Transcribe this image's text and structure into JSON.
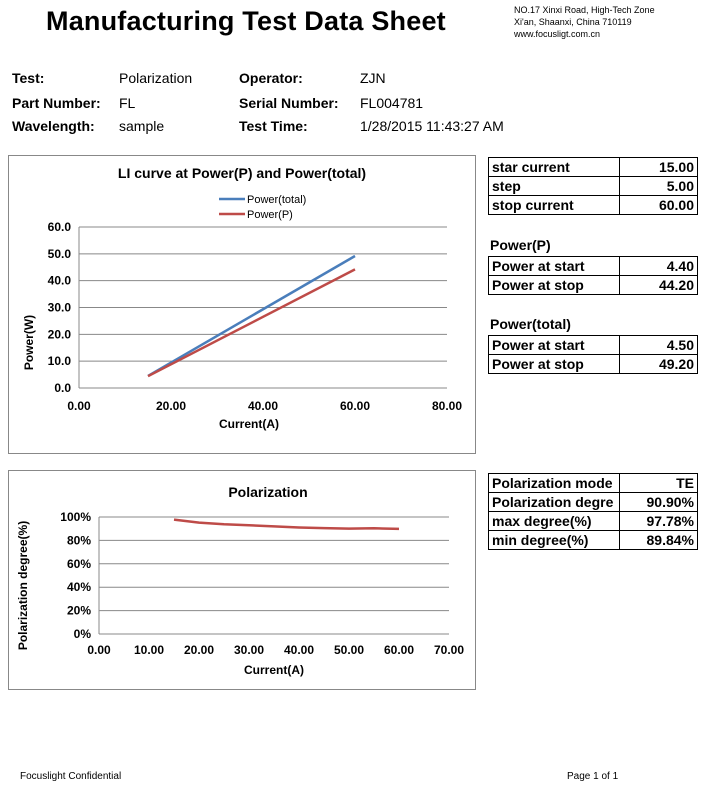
{
  "header": {
    "title": "Manufacturing Test Data Sheet",
    "address_line1": "NO.17 Xinxi Road, High-Tech Zone",
    "address_line2": "Xi'an, Shaanxi, China  710119",
    "website": "www.focusligt.com.cn"
  },
  "info": {
    "test_label": "Test:",
    "test_value": "Polarization",
    "part_label": "Part Number:",
    "part_value": "FL",
    "wave_label": "Wavelength:",
    "wave_value": "sample",
    "operator_label": "Operator:",
    "operator_value": "ZJN",
    "serial_label": "Serial Number:",
    "serial_value": "FL004781",
    "time_label": "Test Time:",
    "time_value": "1/28/2015  11:43:27 AM"
  },
  "chart_data": [
    {
      "type": "line",
      "title": "LI curve at Power(P) and Power(total)",
      "xlabel": "Current(A)",
      "ylabel": "Power(W)",
      "xlim": [
        0,
        80
      ],
      "ylim": [
        0,
        60
      ],
      "x_ticks": [
        "0.00",
        "20.00",
        "40.00",
        "60.00",
        "80.00"
      ],
      "y_ticks": [
        "0.0",
        "10.0",
        "20.0",
        "30.0",
        "40.0",
        "50.0",
        "60.0"
      ],
      "legend_position": "top-center",
      "series": [
        {
          "name": "Power(total)",
          "color": "#4a7ebb",
          "x": [
            15,
            60
          ],
          "y": [
            4.5,
            49.2
          ]
        },
        {
          "name": "Power(P)",
          "color": "#be4b48",
          "x": [
            15,
            60
          ],
          "y": [
            4.4,
            44.2
          ]
        }
      ]
    },
    {
      "type": "line",
      "title": "Polarization",
      "xlabel": "Current(A)",
      "ylabel": "Polarization degree(%)",
      "xlim": [
        0,
        70
      ],
      "ylim": [
        0,
        100
      ],
      "x_ticks": [
        "0.00",
        "10.00",
        "20.00",
        "30.00",
        "40.00",
        "50.00",
        "60.00",
        "70.00"
      ],
      "y_ticks": [
        "0%",
        "20%",
        "40%",
        "60%",
        "80%",
        "100%"
      ],
      "series": [
        {
          "color": "#be4b48",
          "x": [
            15,
            20,
            25,
            30,
            35,
            40,
            45,
            50,
            55,
            60
          ],
          "y": [
            97.78,
            95.2,
            93.8,
            93.0,
            92.0,
            91.0,
            90.5,
            90.1,
            90.3,
            89.84
          ]
        }
      ]
    }
  ],
  "params": {
    "rows": [
      {
        "label": "star current",
        "value": "15.00"
      },
      {
        "label": "step",
        "value": "5.00"
      },
      {
        "label": "stop current",
        "value": "60.00"
      }
    ],
    "power_p_title": "Power(P)",
    "power_p": [
      {
        "label": "Power at start",
        "value": "4.40"
      },
      {
        "label": "Power at stop",
        "value": "44.20"
      }
    ],
    "power_total_title": "Power(total)",
    "power_total": [
      {
        "label": "Power at start",
        "value": "4.50"
      },
      {
        "label": "Power at stop",
        "value": "49.20"
      }
    ],
    "polarization": [
      {
        "label": "Polarization mode",
        "value": "TE"
      },
      {
        "label": "Polarization degre",
        "value": "90.90%"
      },
      {
        "label": "max degree(%)",
        "value": "97.78%"
      },
      {
        "label": "min degree(%)",
        "value": "89.84%"
      }
    ]
  },
  "footer": {
    "left": "Focuslight Confidential",
    "right": "Page 1 of 1"
  }
}
